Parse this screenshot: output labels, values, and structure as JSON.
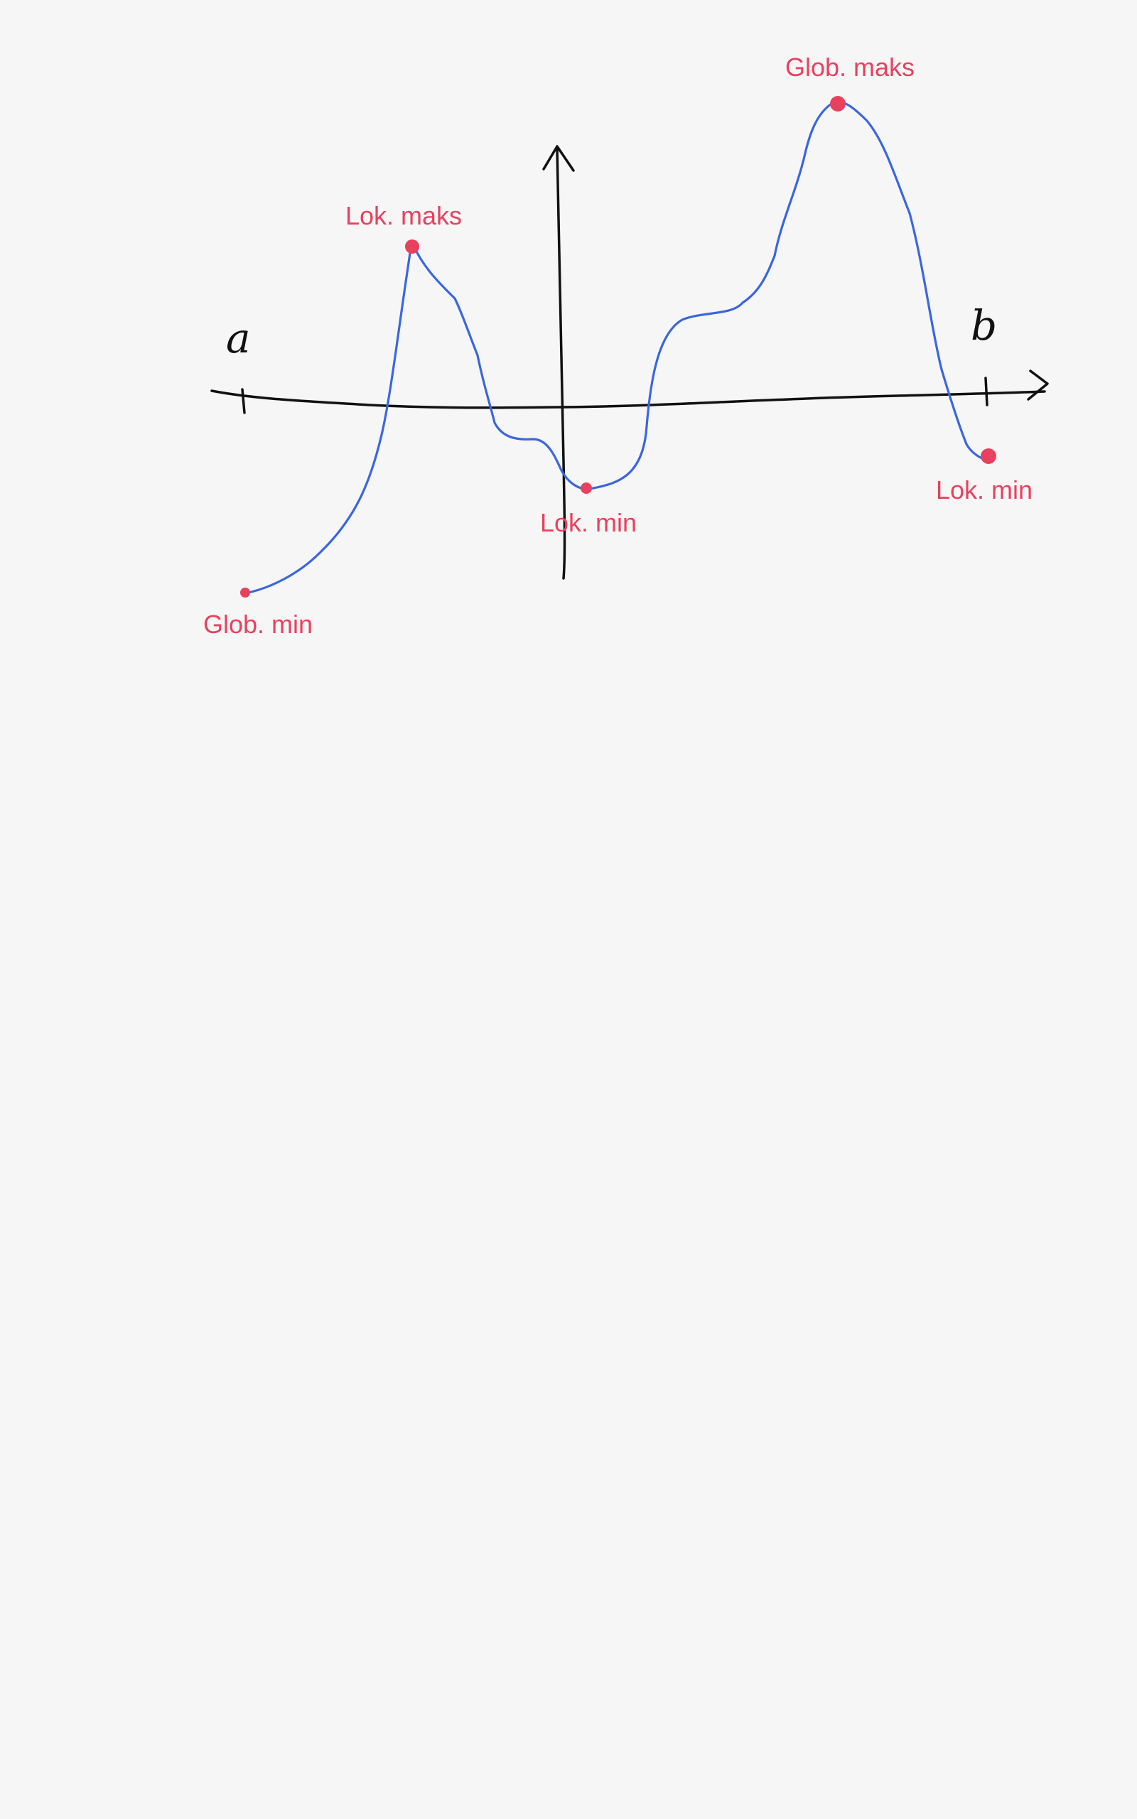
{
  "colors": {
    "background": "#f6f6f6",
    "axes": "#111111",
    "curve": "#3a66e0",
    "annotation": "#e8415f"
  },
  "endpoints": {
    "a": "a",
    "b": "b"
  },
  "labels": {
    "lok_maks": "Lok. maks",
    "glob_maks": "Glob. maks",
    "glob_min": "Glob. min",
    "lok_min_middle": "Lok. min",
    "lok_min_right": "Lok. min"
  }
}
